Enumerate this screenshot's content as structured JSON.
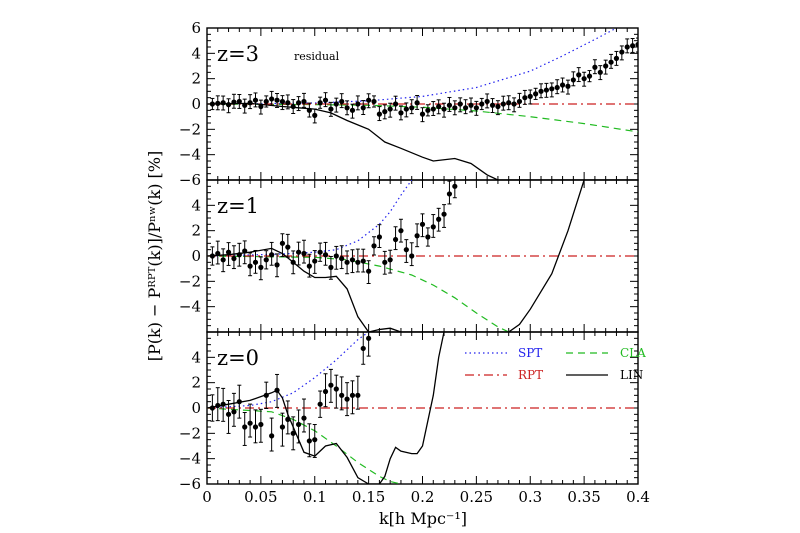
{
  "chart_data": {
    "type": "line",
    "xlabel": "k[h Mpc⁻¹]",
    "ylabel": "[P(k) − Pᴿᴾᵀ(k)]/Pⁿʷ(k)  [%]",
    "xlim": [
      0,
      0.4
    ],
    "xticks": [
      "0",
      "0.05",
      "0.1",
      "0.15",
      "0.2",
      "0.25",
      "0.3",
      "0.35",
      "0.4"
    ],
    "legend": {
      "placement": "upper-right of bottom panel",
      "entries": [
        {
          "key": "SPT",
          "label": "SPT",
          "color": "#2222ee",
          "style": "dotted"
        },
        {
          "key": "CLA",
          "label": "CLA",
          "color": "#22bb22",
          "style": "dashed"
        },
        {
          "key": "RPT",
          "label": "RPT",
          "color": "#cc2222",
          "style": "dashdot"
        },
        {
          "key": "LIN",
          "label": "LIN",
          "color": "#000000",
          "style": "solid"
        }
      ]
    },
    "panels": [
      {
        "label": "z=3",
        "annotation": "residual",
        "ylim": [
          -6,
          6
        ],
        "yticks": [
          "6",
          "4",
          "2",
          "0",
          "−2",
          "−4",
          "−6"
        ],
        "series": [
          {
            "key": "SPT",
            "x": [
              0.0,
              0.05,
              0.1,
              0.15,
              0.2,
              0.25,
              0.3,
              0.33,
              0.36,
              0.38
            ],
            "y": [
              0.0,
              0.02,
              0.08,
              0.25,
              0.6,
              1.3,
              2.6,
              3.8,
              5.1,
              6.0
            ]
          },
          {
            "key": "CLA",
            "x": [
              0.0,
              0.1,
              0.15,
              0.2,
              0.25,
              0.3,
              0.35,
              0.4
            ],
            "y": [
              0.0,
              -0.05,
              -0.1,
              -0.25,
              -0.55,
              -1.0,
              -1.55,
              -2.2
            ]
          },
          {
            "key": "RPT",
            "x": [
              0.0,
              0.4
            ],
            "y": [
              0.0,
              0.0
            ]
          },
          {
            "key": "LIN",
            "x": [
              0.0,
              0.04,
              0.07,
              0.085,
              0.1,
              0.115,
              0.13,
              0.15,
              0.165,
              0.18,
              0.2,
              0.21,
              0.23,
              0.245,
              0.26,
              0.27,
              0.28,
              0.3,
              0.4
            ],
            "y": [
              0.0,
              0.05,
              -0.2,
              -0.3,
              -0.4,
              -0.7,
              -1.3,
              -2.0,
              -3.0,
              -3.5,
              -4.2,
              -4.5,
              -4.3,
              -4.7,
              -5.6,
              -6.0,
              -6.0,
              -6.0,
              -6.0
            ]
          },
          {
            "key": "data",
            "x": [
              0.005,
              0.01,
              0.015,
              0.02,
              0.025,
              0.03,
              0.035,
              0.04,
              0.045,
              0.05,
              0.055,
              0.06,
              0.065,
              0.07,
              0.075,
              0.08,
              0.085,
              0.09,
              0.095,
              0.1,
              0.105,
              0.11,
              0.115,
              0.12,
              0.125,
              0.13,
              0.135,
              0.14,
              0.145,
              0.15,
              0.155,
              0.16,
              0.165,
              0.17,
              0.175,
              0.18,
              0.185,
              0.19,
              0.195,
              0.2,
              0.205,
              0.21,
              0.215,
              0.22,
              0.225,
              0.23,
              0.235,
              0.24,
              0.245,
              0.25,
              0.255,
              0.26,
              0.265,
              0.27,
              0.275,
              0.28,
              0.285,
              0.29,
              0.295,
              0.3,
              0.305,
              0.31,
              0.315,
              0.32,
              0.325,
              0.33,
              0.335,
              0.34,
              0.345,
              0.35,
              0.355,
              0.36,
              0.365,
              0.37,
              0.375,
              0.38,
              0.385,
              0.39,
              0.395,
              0.4
            ],
            "y": [
              0.0,
              0.05,
              0.1,
              -0.05,
              0.15,
              0.2,
              -0.1,
              0.1,
              0.3,
              -0.2,
              0.2,
              0.4,
              0.3,
              0.2,
              0.1,
              -0.2,
              0.1,
              0.2,
              -0.5,
              -0.9,
              0.1,
              0.3,
              -0.4,
              0.0,
              0.2,
              -0.3,
              -0.5,
              0.0,
              -0.3,
              0.3,
              0.2,
              -0.8,
              -0.6,
              -0.4,
              0.0,
              -0.7,
              -0.4,
              -0.3,
              0.1,
              -0.8,
              -0.5,
              -0.4,
              -0.2,
              -0.4,
              -0.1,
              -0.3,
              0.0,
              -0.3,
              -0.1,
              -0.3,
              0.0,
              0.2,
              -0.1,
              -0.2,
              0.0,
              0.1,
              0.0,
              0.2,
              0.5,
              0.6,
              0.8,
              1.0,
              1.1,
              1.2,
              1.3,
              1.5,
              1.4,
              1.9,
              2.3,
              2.0,
              2.2,
              2.9,
              2.5,
              3.0,
              3.3,
              3.6,
              4.1,
              4.5,
              4.6,
              4.7
            ]
          }
        ]
      },
      {
        "label": "z=1",
        "ylim": [
          -6,
          6
        ],
        "yticks": [
          "4",
          "2",
          "0",
          "−2",
          "−4"
        ],
        "series": [
          {
            "key": "SPT",
            "x": [
              0.0,
              0.05,
              0.08,
              0.1,
              0.12,
              0.14,
              0.16,
              0.17,
              0.18,
              0.19
            ],
            "y": [
              0.0,
              0.1,
              0.2,
              0.3,
              0.5,
              1.2,
              2.5,
              3.5,
              4.8,
              6.0
            ]
          },
          {
            "key": "CLA",
            "x": [
              0.0,
              0.1,
              0.13,
              0.16,
              0.19,
              0.21,
              0.23,
              0.25,
              0.27,
              0.28
            ],
            "y": [
              0.0,
              -0.1,
              -0.3,
              -0.8,
              -1.5,
              -2.3,
              -3.3,
              -4.5,
              -5.6,
              -6.0
            ]
          },
          {
            "key": "RPT",
            "x": [
              0.0,
              0.4
            ],
            "y": [
              0.0,
              0.0
            ]
          },
          {
            "key": "LIN",
            "x": [
              0.0,
              0.02,
              0.04,
              0.06,
              0.07,
              0.08,
              0.09,
              0.1,
              0.11,
              0.12,
              0.13,
              0.14,
              0.15,
              0.16,
              0.17,
              0.18,
              0.2,
              0.28,
              0.29,
              0.3,
              0.32,
              0.335,
              0.35
            ],
            "y": [
              0.0,
              0.1,
              0.3,
              0.6,
              0.2,
              -0.5,
              -1.2,
              -1.7,
              -1.7,
              -1.6,
              -2.6,
              -4.8,
              -6.0,
              -5.8,
              -5.7,
              -6.0,
              -6.0,
              -6.0,
              -5.4,
              -4.2,
              -1.4,
              2.0,
              6.0
            ]
          },
          {
            "key": "data",
            "x": [
              0.005,
              0.01,
              0.015,
              0.02,
              0.025,
              0.03,
              0.035,
              0.04,
              0.045,
              0.05,
              0.055,
              0.06,
              0.065,
              0.07,
              0.075,
              0.08,
              0.085,
              0.09,
              0.095,
              0.1,
              0.105,
              0.11,
              0.115,
              0.12,
              0.125,
              0.13,
              0.135,
              0.14,
              0.145,
              0.15,
              0.155,
              0.16,
              0.165,
              0.17,
              0.175,
              0.18,
              0.185,
              0.19,
              0.195,
              0.2,
              0.205,
              0.21,
              0.215,
              0.22,
              0.225,
              0.23
            ],
            "y": [
              0.0,
              0.2,
              -0.3,
              0.3,
              -0.2,
              0.1,
              0.4,
              -0.8,
              -0.5,
              -0.9,
              -0.3,
              0.1,
              -0.7,
              1.0,
              0.7,
              -0.5,
              0.3,
              0.2,
              -0.8,
              -0.4,
              0.3,
              0.1,
              -0.9,
              0.0,
              -0.2,
              -0.5,
              -0.3,
              -0.5,
              -0.4,
              -1.2,
              0.8,
              1.5,
              -0.5,
              -0.3,
              1.3,
              2.0,
              0.5,
              0.0,
              1.6,
              2.5,
              1.5,
              2.3,
              2.9,
              3.3,
              4.9,
              5.5
            ]
          }
        ]
      },
      {
        "label": "z=0",
        "ylim": [
          -6,
          6
        ],
        "yticks": [
          "4",
          "2",
          "0",
          "−2",
          "−4",
          "−6"
        ],
        "series": [
          {
            "key": "SPT",
            "x": [
              0.0,
              0.04,
              0.06,
              0.08,
              0.1,
              0.12,
              0.13,
              0.14,
              0.15
            ],
            "y": [
              0.0,
              0.2,
              0.5,
              1.2,
              2.4,
              3.8,
              4.6,
              5.4,
              6.0
            ]
          },
          {
            "key": "CLA",
            "x": [
              0.0,
              0.06,
              0.08,
              0.1,
              0.12,
              0.14,
              0.16,
              0.17,
              0.18
            ],
            "y": [
              0.0,
              -0.3,
              -0.9,
              -1.8,
              -3.0,
              -4.3,
              -5.4,
              -5.8,
              -6.0
            ]
          },
          {
            "key": "RPT",
            "x": [
              0.0,
              0.4
            ],
            "y": [
              0.0,
              0.0
            ]
          },
          {
            "key": "LIN",
            "x": [
              0.0,
              0.02,
              0.04,
              0.06,
              0.065,
              0.07,
              0.075,
              0.08,
              0.09,
              0.1,
              0.11,
              0.12,
              0.13,
              0.14,
              0.15,
              0.16,
              0.165,
              0.17,
              0.175,
              0.18,
              0.19,
              0.195,
              0.2,
              0.21,
              0.215,
              0.22
            ],
            "y": [
              0.0,
              0.3,
              0.6,
              1.2,
              1.4,
              0.8,
              -0.5,
              -1.5,
              -3.5,
              -3.8,
              -3.0,
              -2.8,
              -3.9,
              -5.5,
              -6.0,
              -6.0,
              -5.4,
              -4.0,
              -3.1,
              -3.4,
              -3.6,
              -3.6,
              -3.0,
              1.0,
              4.0,
              6.0
            ]
          },
          {
            "key": "data",
            "x": [
              0.005,
              0.01,
              0.015,
              0.02,
              0.025,
              0.03,
              0.035,
              0.04,
              0.045,
              0.05,
              0.055,
              0.06,
              0.065,
              0.07,
              0.075,
              0.08,
              0.085,
              0.09,
              0.095,
              0.1,
              0.105,
              0.11,
              0.115,
              0.12,
              0.125,
              0.13,
              0.135,
              0.14,
              0.145,
              0.15
            ],
            "y": [
              0.0,
              0.2,
              0.3,
              -0.5,
              -0.3,
              0.5,
              -1.5,
              -1.2,
              -1.5,
              -1.3,
              1.0,
              -2.2,
              1.4,
              -1.5,
              -0.9,
              -2.0,
              -1.3,
              -0.8,
              -2.6,
              -2.5,
              0.3,
              1.3,
              1.8,
              1.5,
              1.0,
              0.7,
              1.0,
              1.0,
              4.7,
              5.5
            ]
          }
        ]
      }
    ]
  }
}
